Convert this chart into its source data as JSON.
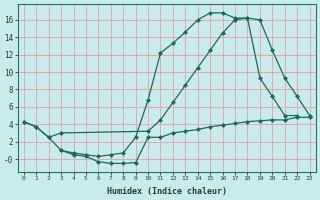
{
  "xlabel": "Humidex (Indice chaleur)",
  "bg_color": "#c8ecec",
  "grid_color": "#e8a8a8",
  "line_color": "#1a6b5a",
  "xlim": [
    -0.5,
    23.5
  ],
  "ylim": [
    -1.5,
    17.8
  ],
  "xticks": [
    0,
    1,
    2,
    3,
    4,
    5,
    6,
    7,
    8,
    9,
    10,
    11,
    12,
    13,
    14,
    15,
    16,
    17,
    18,
    19,
    20,
    21,
    22,
    23
  ],
  "yticks": [
    0,
    2,
    4,
    6,
    8,
    10,
    12,
    14,
    16
  ],
  "ytick_labels": [
    "-0",
    "2",
    "4",
    "6",
    "8",
    "10",
    "12",
    "14",
    "16"
  ],
  "curve_diagonal_x": [
    0,
    1,
    2,
    3,
    10,
    11,
    12,
    13,
    14,
    15,
    16,
    17,
    18,
    19,
    20,
    21,
    22,
    23
  ],
  "curve_diagonal_y": [
    4.3,
    3.7,
    2.5,
    3.0,
    3.2,
    4.5,
    6.5,
    8.5,
    10.5,
    12.5,
    14.5,
    16.0,
    16.2,
    16.0,
    12.5,
    9.3,
    7.2,
    5.0
  ],
  "curve_peak_x": [
    0,
    1,
    2,
    3,
    4,
    5,
    6,
    7,
    8,
    9,
    10,
    11,
    12,
    13,
    14,
    15,
    16,
    17,
    18,
    19,
    20,
    21,
    22
  ],
  "curve_peak_y": [
    4.3,
    3.7,
    2.5,
    1.0,
    0.7,
    0.5,
    0.3,
    0.5,
    0.7,
    2.5,
    6.8,
    12.2,
    13.3,
    14.6,
    16.0,
    16.8,
    16.8,
    16.2,
    16.2,
    9.3,
    7.2,
    5.0,
    5.0
  ],
  "curve_bottom_x": [
    3,
    4,
    5,
    6,
    7,
    8,
    9,
    10,
    11,
    12,
    13,
    14,
    15,
    16,
    17,
    18,
    19,
    20,
    21,
    22,
    23
  ],
  "curve_bottom_y": [
    1.0,
    0.5,
    0.3,
    -0.3,
    -0.5,
    -0.5,
    -0.4,
    2.5,
    2.5,
    3.0,
    3.2,
    3.4,
    3.7,
    3.9,
    4.1,
    4.3,
    4.4,
    4.5,
    4.5,
    4.8,
    4.8
  ]
}
